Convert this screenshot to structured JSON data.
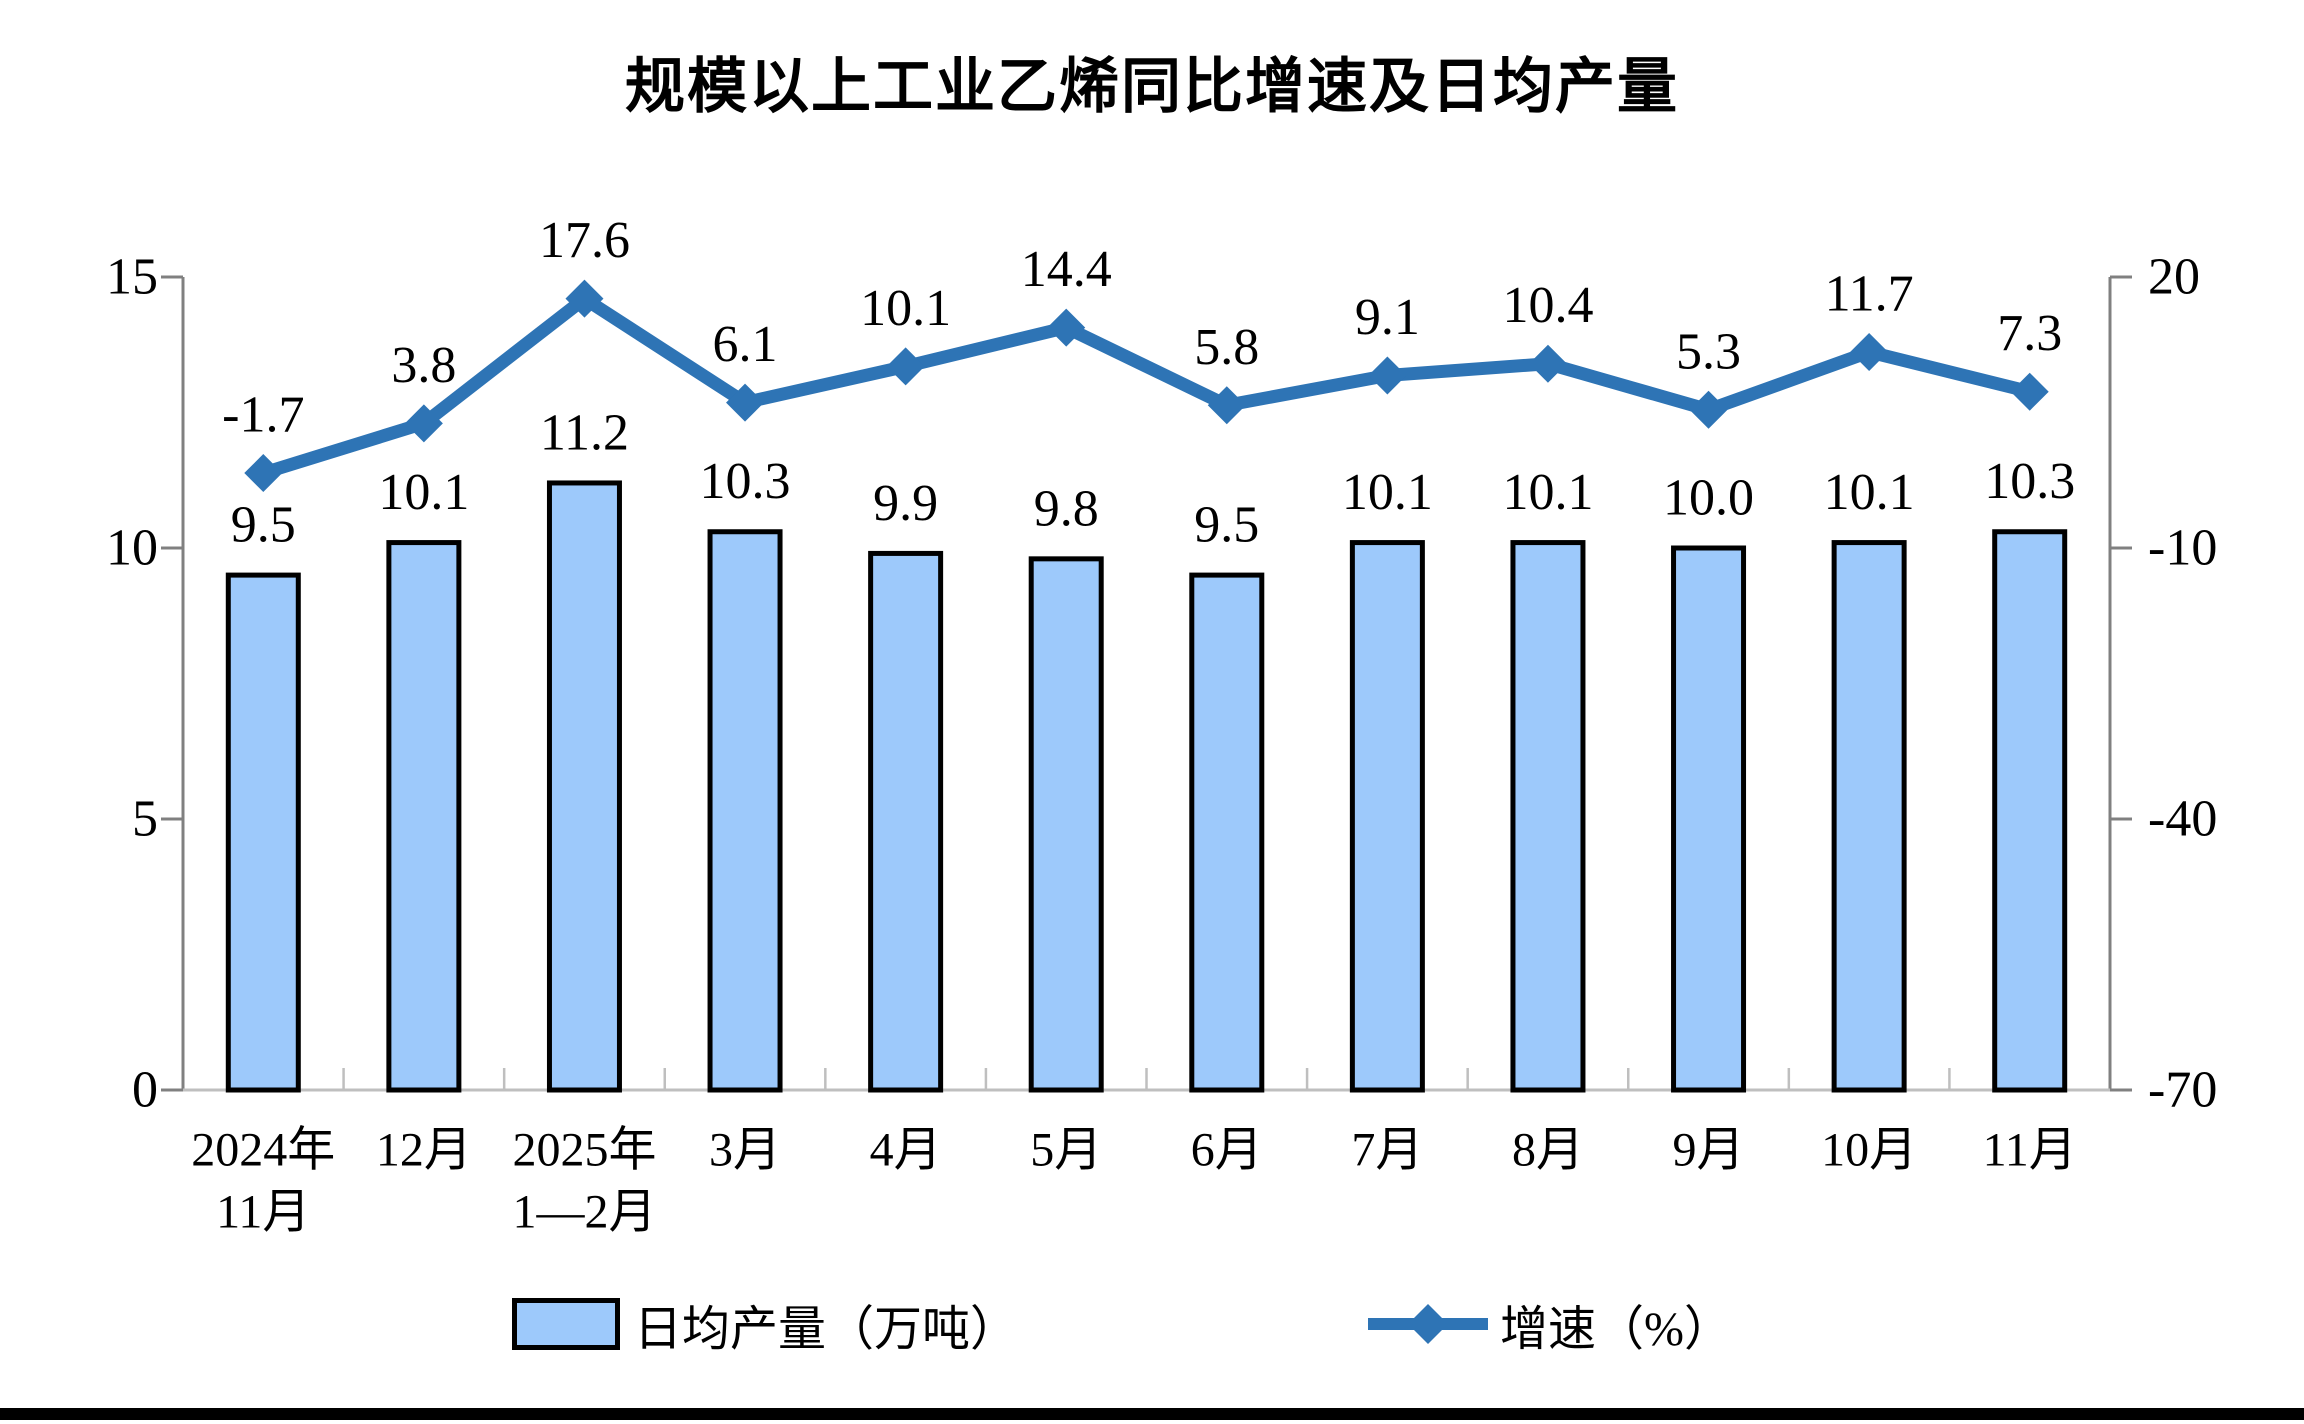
{
  "chart_data": {
    "type": "bar",
    "subtype": "bar-line-combo",
    "title": "规模以上工业乙烯同比增速及日均产量",
    "categories": [
      [
        "2024年",
        "11月"
      ],
      [
        "12月"
      ],
      [
        "2025年",
        "1—2月"
      ],
      [
        "3月"
      ],
      [
        "4月"
      ],
      [
        "5月"
      ],
      [
        "6月"
      ],
      [
        "7月"
      ],
      [
        "8月"
      ],
      [
        "9月"
      ],
      [
        "10月"
      ],
      [
        "11月"
      ]
    ],
    "series": [
      {
        "name": "日均产量（万吨）",
        "type": "bar",
        "axis": "left",
        "values": [
          9.5,
          10.1,
          11.2,
          10.3,
          9.9,
          9.8,
          9.5,
          10.1,
          10.1,
          10.0,
          10.1,
          10.3
        ],
        "labels": [
          "9.5",
          "10.1",
          "11.2",
          "10.3",
          "9.9",
          "9.8",
          "9.5",
          "10.1",
          "10.1",
          "10.0",
          "10.1",
          "10.3"
        ]
      },
      {
        "name": "增速（%）",
        "type": "line",
        "axis": "right",
        "values": [
          -1.7,
          3.8,
          17.6,
          6.1,
          10.1,
          14.4,
          5.8,
          9.1,
          10.4,
          5.3,
          11.7,
          7.3
        ],
        "labels": [
          "-1.7",
          "3.8",
          "17.6",
          "6.1",
          "10.1",
          "14.4",
          "5.8",
          "9.1",
          "10.4",
          "5.3",
          "11.7",
          "7.3"
        ]
      }
    ],
    "y_left": {
      "ticks": [
        "15",
        "10",
        "5",
        "0"
      ],
      "min": 0,
      "max": 15
    },
    "y_right": {
      "ticks": [
        "20",
        "-10",
        "-40",
        "-70"
      ],
      "min": -70,
      "max": 20
    },
    "legend_position": "bottom",
    "grid": false
  },
  "colors": {
    "bar_fill": "#9DC9FB",
    "bar_border": "#000000",
    "line": "#2E74B5",
    "y_axis": "#808080",
    "x_axis": "#BFBFBF",
    "text": "#000000"
  }
}
